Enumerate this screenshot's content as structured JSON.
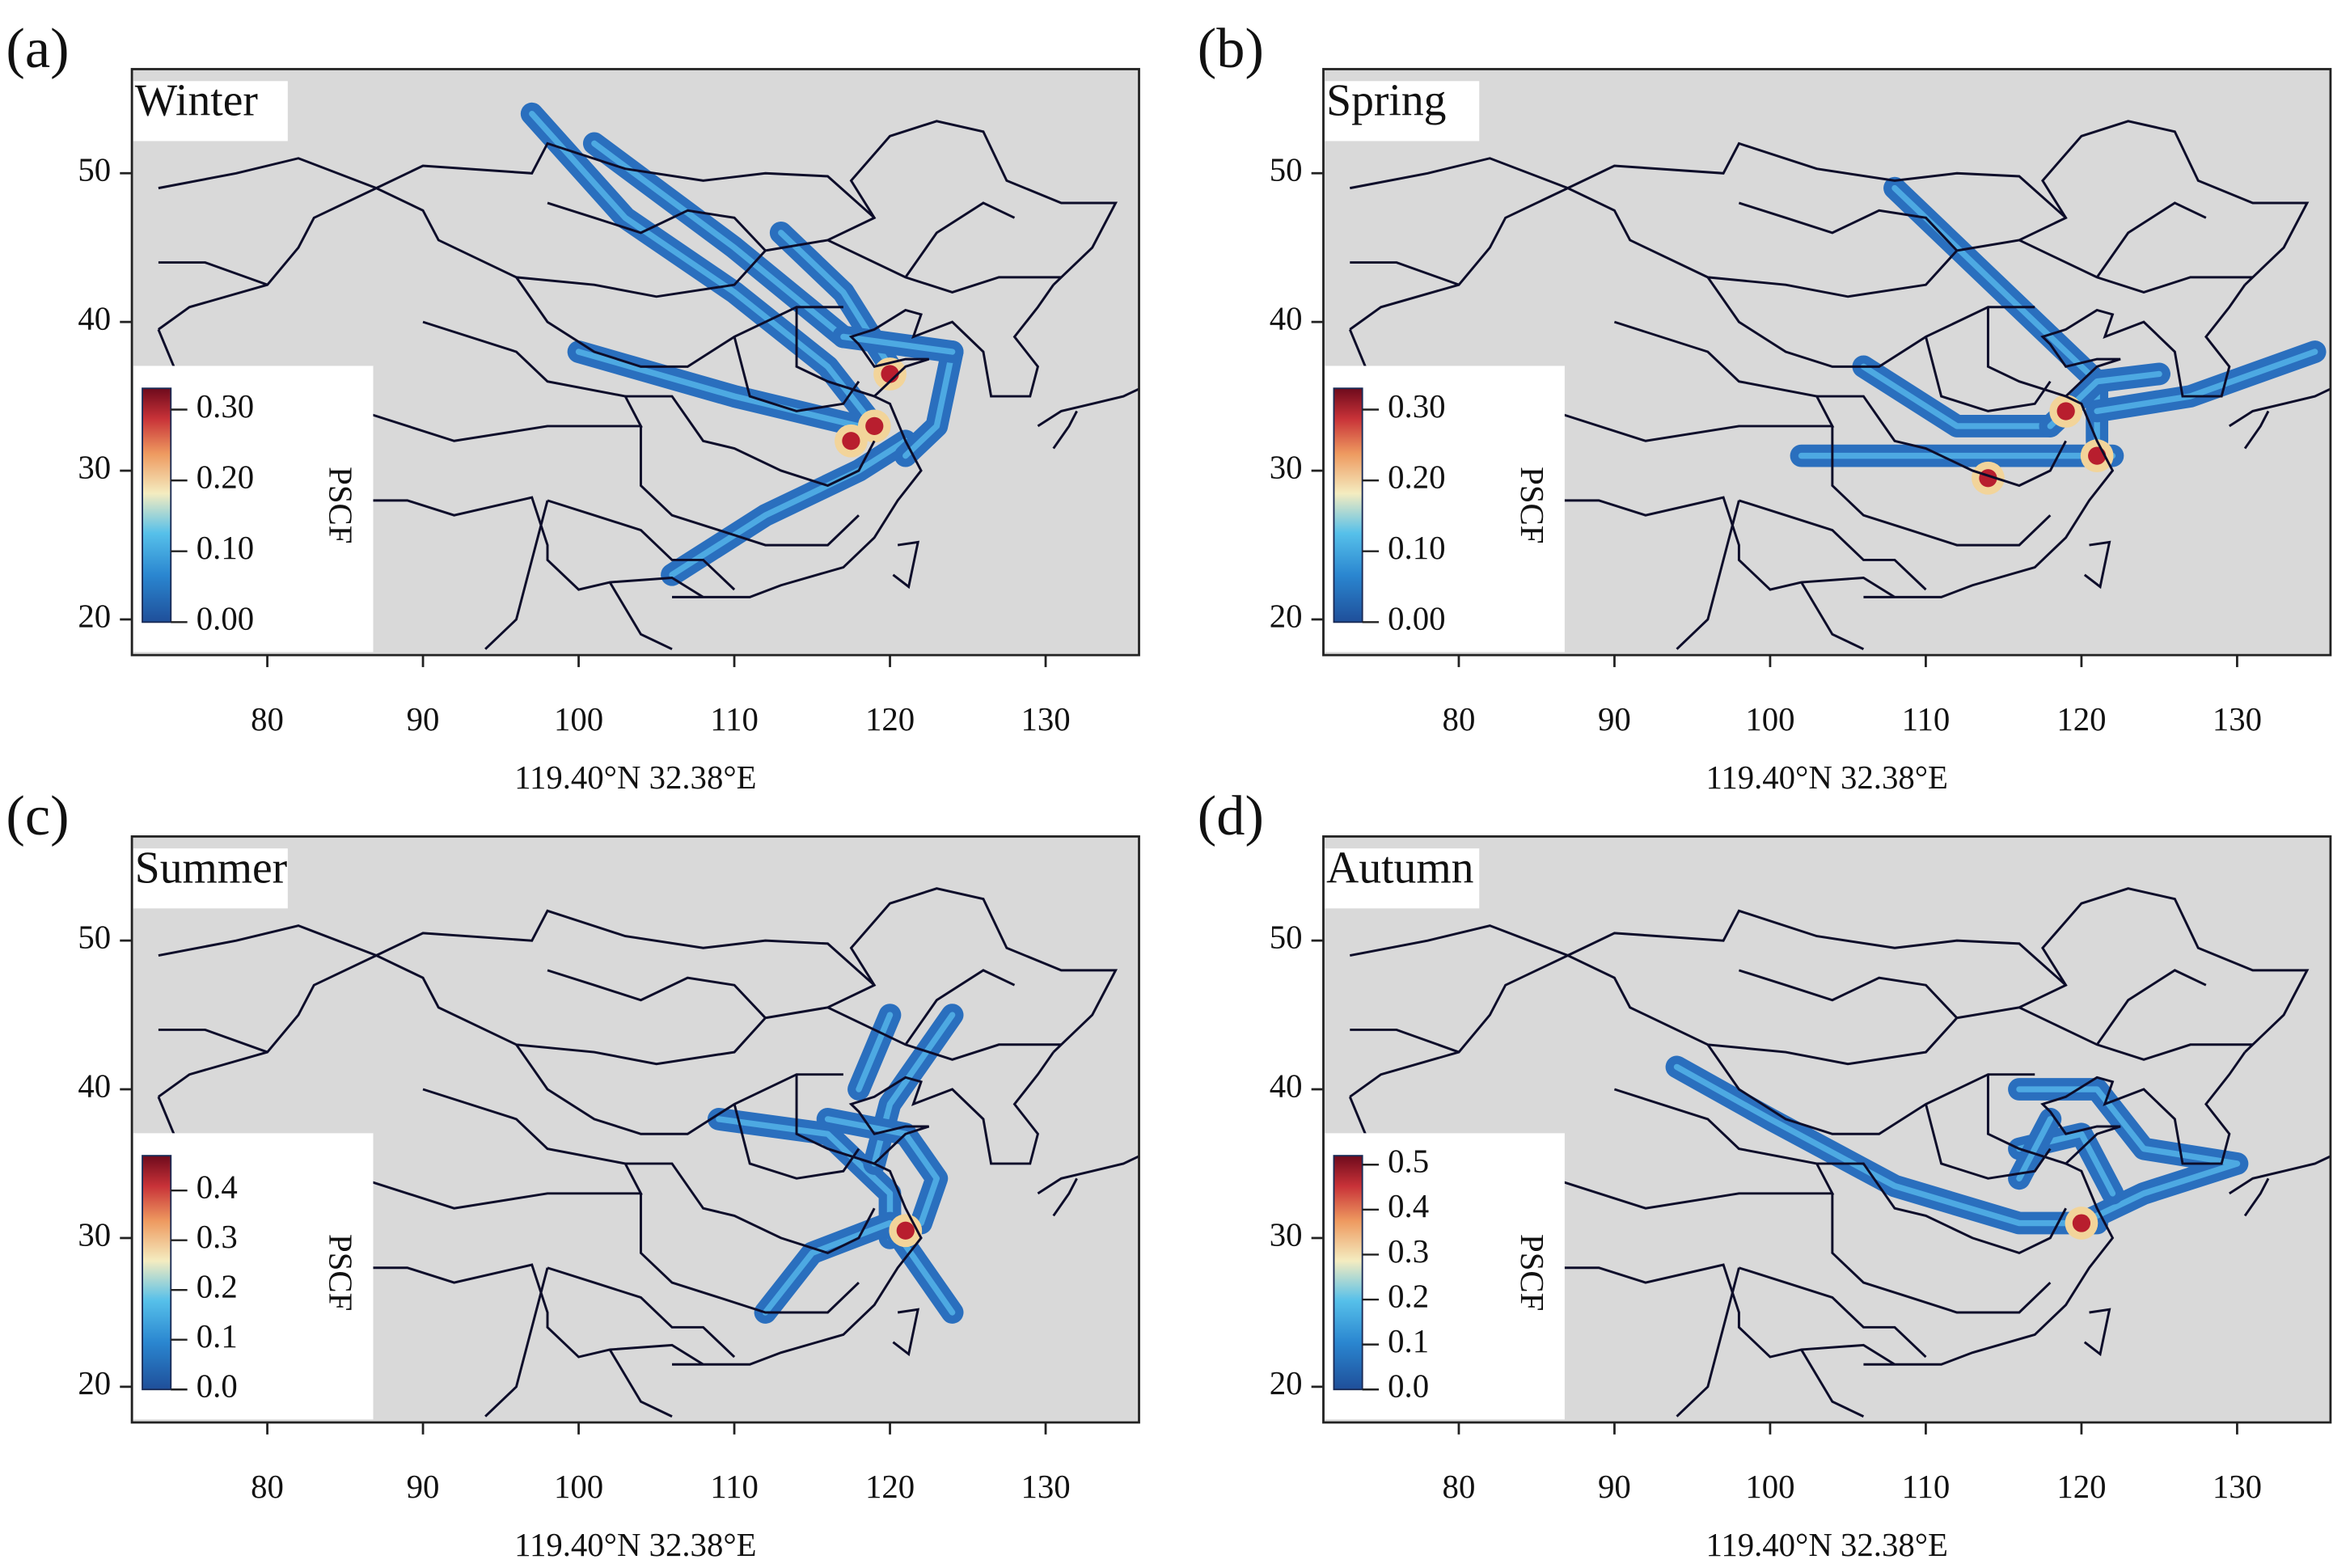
{
  "axes": {
    "xlim": [
      71.3,
      136
    ],
    "ylim": [
      17.6,
      57
    ],
    "xticks": [
      80,
      90,
      100,
      110,
      120,
      130
    ],
    "yticks": [
      20,
      30,
      40,
      50
    ]
  },
  "panels": [
    {
      "label": "(a)",
      "season": "Winter",
      "xlabel": "119.40°N  32.38°E",
      "colorbar": {
        "title": "PSCF",
        "clim": [
          0,
          0.33
        ],
        "ticks": [
          {
            "value": 0.3,
            "label": "0.30"
          },
          {
            "value": 0.2,
            "label": "0.20"
          },
          {
            "value": 0.1,
            "label": "0.10"
          },
          {
            "value": 0,
            "label": "0.00"
          }
        ]
      }
    },
    {
      "label": "(b)",
      "season": "Spring",
      "xlabel": "119.40°N  32.38°E",
      "colorbar": {
        "title": "PSCF",
        "clim": [
          0,
          0.33
        ],
        "ticks": [
          {
            "value": 0.3,
            "label": "0.30"
          },
          {
            "value": 0.2,
            "label": "0.20"
          },
          {
            "value": 0.1,
            "label": "0.10"
          },
          {
            "value": 0,
            "label": "0.00"
          }
        ]
      }
    },
    {
      "label": "(c)",
      "season": "Summer",
      "xlabel": "119.40°N  32.38°E",
      "colorbar": {
        "title": "PSCF",
        "clim": [
          0,
          0.47
        ],
        "ticks": [
          0.4,
          0.3,
          0.2,
          0.1,
          {
            "value": 0,
            "label": "0.0"
          }
        ]
      }
    },
    {
      "label": "(d)",
      "season": "Autumn",
      "xlabel": "119.40°N  32.38°E",
      "colorbar": {
        "title": "PSCF",
        "clim": [
          0,
          0.52
        ],
        "ticks": [
          0.5,
          0.4,
          0.3,
          0.2,
          0.1,
          {
            "value": 0,
            "label": "0.0"
          }
        ]
      }
    }
  ]
}
